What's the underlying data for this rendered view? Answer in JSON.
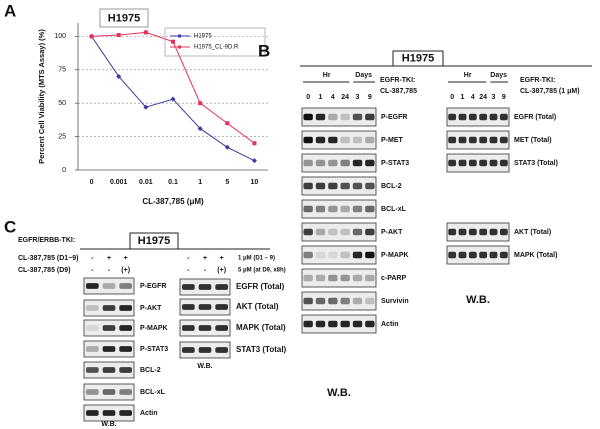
{
  "chart_data": {
    "type": "line",
    "panel_label": "A",
    "title": "H1975",
    "ylabel": "Percent Cell Viability (MTS Assay) (%)",
    "xlabel": "CL-387,785 (μM)",
    "categories": [
      "0",
      "0.001",
      "0.01",
      "0.1",
      "1",
      "5",
      "10"
    ],
    "series": [
      {
        "name": "H1975",
        "color": "#3a3aa0",
        "values": [
          100,
          70,
          47,
          53,
          31,
          17,
          7
        ]
      },
      {
        "name": "H1975_CL-9D.R",
        "color": "#e8305a",
        "values": [
          100,
          101,
          103,
          96,
          50,
          35,
          20
        ]
      }
    ],
    "ylim": [
      0,
      110
    ],
    "yticks": [
      0,
      25,
      50,
      75,
      100
    ],
    "grid": true
  },
  "panel_b": {
    "panel_label": "B",
    "title": "H1975",
    "left": {
      "treatment": [
        "EGFR-TKI:",
        "CL-387,785"
      ],
      "hr_label": "Hr",
      "days_label": "Days",
      "lanes": [
        "0",
        "1",
        "4",
        "24",
        "3",
        "9"
      ],
      "rows": [
        "P-EGFR",
        "P-MET",
        "P-STAT3",
        "BCL-2",
        "BCL-xL",
        "P-AKT",
        "P-MAPK",
        "c-PARP",
        "Survivin",
        "Actin"
      ],
      "wb": "W.B."
    },
    "right": {
      "treatment": [
        "EGFR-TKI:",
        "CL-387,785 (1 μM)"
      ],
      "hr_label": "Hr",
      "days_label": "Days",
      "lanes": [
        "0",
        "1",
        "4",
        "24",
        "3",
        "9"
      ],
      "rows": [
        "EGFR (Total)",
        "MET (Total)",
        "STAT3 (Total)",
        "AKT (Total)",
        "MAPK (Total)"
      ],
      "wb": "W.B."
    }
  },
  "panel_c": {
    "panel_label": "C",
    "treatment": "EGFR/ERBB-TKI:",
    "title": "H1975",
    "conditions": [
      {
        "label": "CL-387,785 (D1~9)",
        "left": [
          "-",
          "+",
          "+"
        ],
        "right": [
          "-",
          "+",
          "+"
        ],
        "note": "1 μM (D1 – 9)"
      },
      {
        "label": "CL-387,785 (D9)",
        "left": [
          "-",
          "-",
          "(+)"
        ],
        "right": [
          "-",
          "-",
          "(+)"
        ],
        "note": "5 μM (at D9, x8h)"
      }
    ],
    "left": {
      "rows": [
        "P-EGFR",
        "P-AKT",
        "P-MAPK",
        "P-STAT3",
        "BCL-2",
        "BCL-xL",
        "Actin"
      ],
      "wb": "W.B."
    },
    "right": {
      "rows": [
        "EGFR (Total)",
        "AKT (Total)",
        "MAPK (Total)",
        "STAT3 (Total)"
      ],
      "wb": "W.B."
    }
  }
}
